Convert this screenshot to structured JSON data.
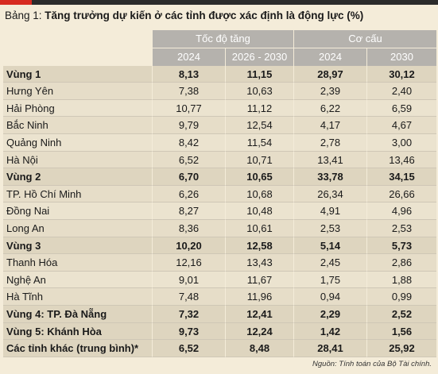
{
  "title": {
    "prefix": "Bảng 1: ",
    "main": "Tăng trưởng dự kiến ở các tỉnh được xác định là động lực (%)"
  },
  "header": {
    "group1": "Tốc độ tăng",
    "group2": "Cơ cấu",
    "cols": [
      "2024",
      "2026 - 2030",
      "2024",
      "2030"
    ]
  },
  "rows": [
    {
      "name": "Vùng 1",
      "v": [
        "8,13",
        "11,15",
        "28,97",
        "30,12"
      ],
      "bold": true
    },
    {
      "name": "Hưng Yên",
      "v": [
        "7,38",
        "10,63",
        "2,39",
        "2,40"
      ],
      "bold": false
    },
    {
      "name": "Hải Phòng",
      "v": [
        "10,77",
        "11,12",
        "6,22",
        "6,59"
      ],
      "bold": false
    },
    {
      "name": "Bắc Ninh",
      "v": [
        "9,79",
        "12,54",
        "4,17",
        "4,67"
      ],
      "bold": false
    },
    {
      "name": "Quảng Ninh",
      "v": [
        "8,42",
        "11,54",
        "2,78",
        "3,00"
      ],
      "bold": false
    },
    {
      "name": "Hà Nội",
      "v": [
        "6,52",
        "10,71",
        "13,41",
        "13,46"
      ],
      "bold": false
    },
    {
      "name": "Vùng 2",
      "v": [
        "6,70",
        "10,65",
        "33,78",
        "34,15"
      ],
      "bold": true
    },
    {
      "name": "TP. Hồ Chí Minh",
      "v": [
        "6,26",
        "10,68",
        "26,34",
        "26,66"
      ],
      "bold": false
    },
    {
      "name": "Đồng Nai",
      "v": [
        "8,27",
        "10,48",
        "4,91",
        "4,96"
      ],
      "bold": false
    },
    {
      "name": "Long An",
      "v": [
        "8,36",
        "10,61",
        "2,53",
        "2,53"
      ],
      "bold": false
    },
    {
      "name": "Vùng 3",
      "v": [
        "10,20",
        "12,58",
        "5,14",
        "5,73"
      ],
      "bold": true
    },
    {
      "name": "Thanh Hóa",
      "v": [
        "12,16",
        "13,43",
        "2,45",
        "2,86"
      ],
      "bold": false
    },
    {
      "name": "Nghệ An",
      "v": [
        "9,01",
        "11,67",
        "1,75",
        "1,88"
      ],
      "bold": false
    },
    {
      "name": "Hà Tĩnh",
      "v": [
        "7,48",
        "11,96",
        "0,94",
        "0,99"
      ],
      "bold": false
    },
    {
      "name": "Vùng 4: TP. Đà Nẵng",
      "v": [
        "7,32",
        "12,41",
        "2,29",
        "2,52"
      ],
      "bold": true
    },
    {
      "name": "Vùng 5: Khánh Hòa",
      "v": [
        "9,73",
        "12,24",
        "1,42",
        "1,56"
      ],
      "bold": true
    },
    {
      "name": "Các tỉnh khác (trung bình)*",
      "v": [
        "6,52",
        "8,48",
        "28,41",
        "25,92"
      ],
      "bold": true
    }
  ],
  "source": "Nguồn: Tính toán của Bộ Tài chính."
}
